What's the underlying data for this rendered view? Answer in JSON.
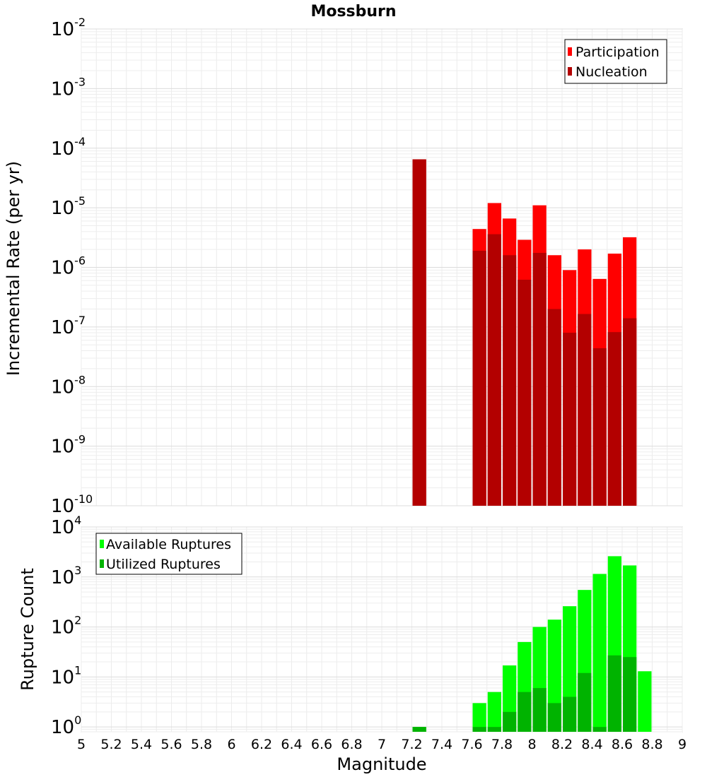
{
  "chart_data": [
    {
      "type": "bar",
      "title": "Mossburn",
      "xlabel": "",
      "ylabel": "Incremental Rate (per yr)",
      "yscale": "log",
      "ylim": [
        1e-10,
        0.01
      ],
      "ytick_exponents": [
        "-10",
        "-9",
        "-8",
        "-7",
        "-6",
        "-5",
        "-4",
        "-3",
        "-2"
      ],
      "xlim": [
        5,
        9
      ],
      "legend_position": "top-right",
      "grid": true,
      "series": [
        {
          "name": "Participation",
          "color": "#ff0000",
          "points": [
            {
              "x": 7.25,
              "y": 6.5e-05
            },
            {
              "x": 7.65,
              "y": 4.4e-06
            },
            {
              "x": 7.75,
              "y": 1.2e-05
            },
            {
              "x": 7.85,
              "y": 6.6e-06
            },
            {
              "x": 7.95,
              "y": 2.9e-06
            },
            {
              "x": 8.05,
              "y": 1.1e-05
            },
            {
              "x": 8.15,
              "y": 1.6e-06
            },
            {
              "x": 8.25,
              "y": 9e-07
            },
            {
              "x": 8.35,
              "y": 2e-06
            },
            {
              "x": 8.45,
              "y": 6.4e-07
            },
            {
              "x": 8.55,
              "y": 1.7e-06
            },
            {
              "x": 8.65,
              "y": 3.2e-06
            }
          ]
        },
        {
          "name": "Nucleation",
          "color": "#b30000",
          "points": [
            {
              "x": 7.25,
              "y": 6.5e-05
            },
            {
              "x": 7.65,
              "y": 1.9e-06
            },
            {
              "x": 7.75,
              "y": 3.6e-06
            },
            {
              "x": 7.85,
              "y": 1.6e-06
            },
            {
              "x": 7.95,
              "y": 6.2e-07
            },
            {
              "x": 8.05,
              "y": 1.75e-06
            },
            {
              "x": 8.15,
              "y": 2e-07
            },
            {
              "x": 8.25,
              "y": 8e-08
            },
            {
              "x": 8.35,
              "y": 1.65e-07
            },
            {
              "x": 8.45,
              "y": 4.4e-08
            },
            {
              "x": 8.55,
              "y": 8.2e-08
            },
            {
              "x": 8.65,
              "y": 1.4e-07
            }
          ]
        }
      ]
    },
    {
      "type": "bar",
      "title": "",
      "xlabel": "Magnitude",
      "ylabel": "Rupture Count",
      "yscale": "log",
      "ylim": [
        0.8,
        10000
      ],
      "ytick_exponents": [
        "0",
        "1",
        "2",
        "3",
        "4"
      ],
      "xlim": [
        5,
        9
      ],
      "xticks": [
        "5",
        "5.2",
        "5.4",
        "5.6",
        "5.8",
        "6",
        "6.2",
        "6.4",
        "6.6",
        "6.8",
        "7",
        "7.2",
        "7.4",
        "7.6",
        "7.8",
        "8",
        "8.2",
        "8.4",
        "8.6",
        "8.8",
        "9"
      ],
      "legend_position": "top-left",
      "grid": true,
      "series": [
        {
          "name": "Available Ruptures",
          "color": "#00ff00",
          "points": [
            {
              "x": 7.25,
              "y": 1
            },
            {
              "x": 7.65,
              "y": 3
            },
            {
              "x": 7.75,
              "y": 5
            },
            {
              "x": 7.85,
              "y": 17
            },
            {
              "x": 7.95,
              "y": 50
            },
            {
              "x": 8.05,
              "y": 100
            },
            {
              "x": 8.15,
              "y": 140
            },
            {
              "x": 8.25,
              "y": 260
            },
            {
              "x": 8.35,
              "y": 550
            },
            {
              "x": 8.45,
              "y": 1150
            },
            {
              "x": 8.55,
              "y": 2600
            },
            {
              "x": 8.65,
              "y": 1700
            },
            {
              "x": 8.75,
              "y": 13
            }
          ]
        },
        {
          "name": "Utilized Ruptures",
          "color": "#00b300",
          "points": [
            {
              "x": 7.25,
              "y": 1
            },
            {
              "x": 7.65,
              "y": 1
            },
            {
              "x": 7.75,
              "y": 1
            },
            {
              "x": 7.85,
              "y": 2
            },
            {
              "x": 7.95,
              "y": 5
            },
            {
              "x": 8.05,
              "y": 6
            },
            {
              "x": 8.15,
              "y": 3
            },
            {
              "x": 8.25,
              "y": 4
            },
            {
              "x": 8.35,
              "y": 12
            },
            {
              "x": 8.45,
              "y": 1
            },
            {
              "x": 8.55,
              "y": 27
            },
            {
              "x": 8.65,
              "y": 25
            }
          ]
        }
      ]
    }
  ]
}
